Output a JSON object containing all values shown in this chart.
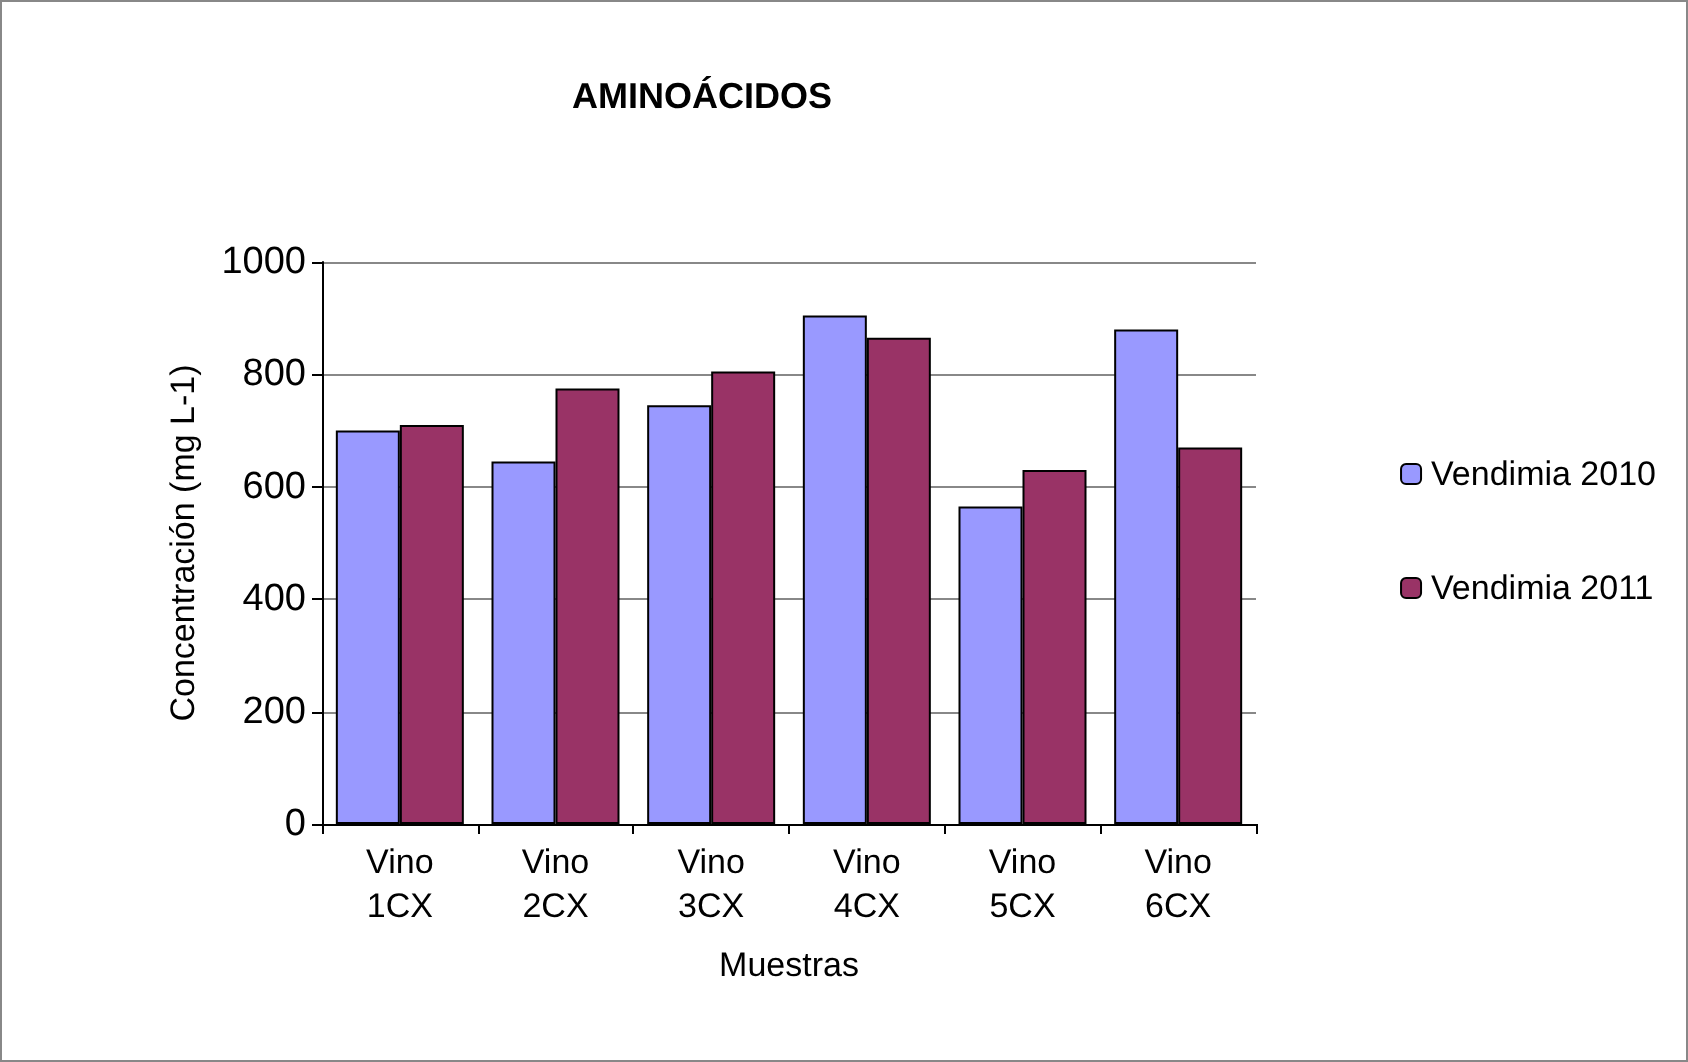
{
  "chart_data": {
    "type": "bar",
    "title": "AMINOÁCIDOS",
    "xlabel": "Muestras",
    "ylabel": "Concentración (mg L-1)",
    "categories": [
      "Vino\n1CX",
      "Vino\n2CX",
      "Vino\n3CX",
      "Vino\n4CX",
      "Vino\n5CX",
      "Vino\n6CX"
    ],
    "series": [
      {
        "name": "Vendimia 2010",
        "color": "#9999ff",
        "values": [
          700,
          645,
          745,
          905,
          565,
          880
        ]
      },
      {
        "name": "Vendimia 2011",
        "color": "#993366",
        "values": [
          710,
          775,
          805,
          865,
          630,
          670
        ]
      }
    ],
    "ylim": [
      0,
      1000
    ],
    "yticks": [
      0,
      200,
      400,
      600,
      800,
      1000
    ],
    "grid": "y",
    "legend": "right"
  }
}
